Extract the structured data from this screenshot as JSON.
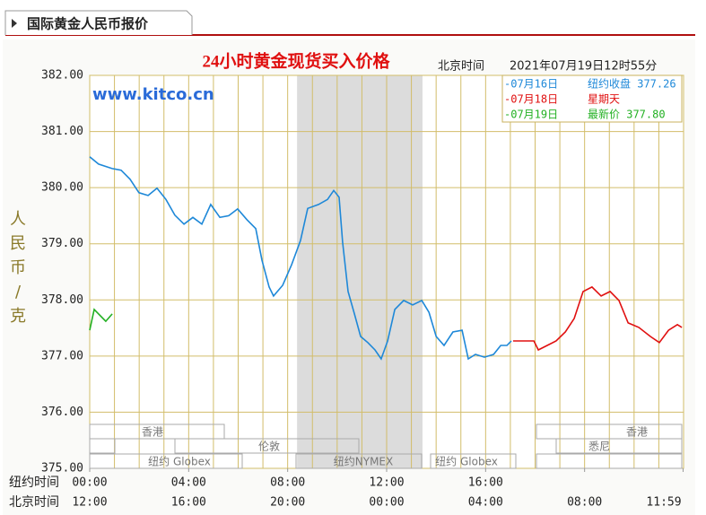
{
  "header": {
    "tab": "国际黄金人民币报价"
  },
  "chart_data": {
    "type": "line",
    "title": "24小时黄金现货买入价格",
    "time_label": "北京时间",
    "timestamp": "2021年07月19日12时55分",
    "watermark": "www.kitco.cn",
    "ylabel": "人民币/克",
    "x_row_labels": [
      "纽约时间",
      "北京时间"
    ],
    "xlim": [
      0,
      24
    ],
    "xticks": [
      {
        "value": 0,
        "label": "12:00"
      },
      {
        "value": 4,
        "label": "16:00"
      },
      {
        "value": 8,
        "label": "20:00"
      },
      {
        "value": 12,
        "label": "00:00"
      },
      {
        "value": 16,
        "label": "04:00"
      },
      {
        "value": 20,
        "label": "08:00"
      },
      {
        "value": 23.98,
        "label": "11:59"
      }
    ],
    "xticks_ny_labels": [
      "00:00",
      "04:00",
      "08:00",
      "12:00",
      "16:00"
    ],
    "ylim": [
      375,
      382
    ],
    "yticks": [
      {
        "value": 375,
        "label": "375.00"
      },
      {
        "value": 376,
        "label": "376.00"
      },
      {
        "value": 377,
        "label": "377.00"
      },
      {
        "value": 378,
        "label": "378.00"
      },
      {
        "value": 379,
        "label": "379.00"
      },
      {
        "value": 380,
        "label": "380.00"
      },
      {
        "value": 381,
        "label": "381.00"
      },
      {
        "value": 382,
        "label": "382.00"
      }
    ],
    "grid": true,
    "shaded_region": [
      8.38,
      13.45
    ],
    "markets": [
      "香港",
      "香港",
      "伦敦",
      "悉尼",
      "纽约 Globex",
      "纽约NYMEX",
      "纽约 Globex"
    ],
    "series": [
      {
        "name": "-07月16日",
        "note": "纽约收盘 377.26",
        "color": "#1e88d8",
        "x": [
          0,
          0.36,
          0.91,
          1.27,
          1.63,
          1.99,
          2.36,
          2.72,
          3.08,
          3.44,
          3.81,
          4.17,
          4.53,
          4.89,
          5.26,
          5.62,
          5.98,
          6.35,
          6.71,
          6.96,
          7.25,
          7.43,
          7.8,
          8.16,
          8.52,
          8.81,
          9.25,
          9.61,
          9.86,
          10.08,
          10.22,
          10.44,
          10.7,
          10.95,
          11.24,
          11.53,
          11.78,
          12.04,
          12.33,
          12.69,
          13.05,
          13.42,
          13.71,
          14.0,
          14.32,
          14.68,
          15.05,
          15.3,
          15.59,
          15.95,
          16.32,
          16.61,
          16.86,
          17.04
        ],
        "values": [
          380.55,
          380.42,
          380.34,
          380.31,
          380.15,
          379.91,
          379.86,
          379.99,
          379.79,
          379.51,
          379.35,
          379.47,
          379.35,
          379.7,
          379.47,
          379.5,
          379.62,
          379.43,
          379.27,
          378.71,
          378.23,
          378.07,
          378.26,
          378.63,
          379.06,
          379.63,
          379.7,
          379.79,
          379.95,
          379.83,
          379.03,
          378.15,
          377.75,
          377.35,
          377.24,
          377.11,
          376.95,
          377.27,
          377.83,
          377.99,
          377.91,
          377.99,
          377.78,
          377.35,
          377.19,
          377.43,
          377.46,
          376.95,
          377.03,
          376.98,
          377.03,
          377.19,
          377.19,
          377.27
        ]
      },
      {
        "name": "-07月18日",
        "note": "星期天",
        "color": "#e01010",
        "x": [
          17.11,
          17.95,
          18.13,
          18.49,
          18.85,
          19.22,
          19.58,
          19.94,
          20.3,
          20.67,
          21.03,
          21.39,
          21.76,
          22.19,
          22.66,
          23.02,
          23.39,
          23.75,
          23.93
        ],
        "values": [
          377.27,
          377.27,
          377.11,
          377.19,
          377.27,
          377.43,
          377.67,
          378.15,
          378.23,
          378.07,
          378.15,
          377.99,
          377.59,
          377.51,
          377.35,
          377.24,
          377.46,
          377.56,
          377.51
        ]
      },
      {
        "name": "-07月19日",
        "note": "最新价 377.80",
        "color": "#22b022",
        "x": [
          0,
          0.18,
          0.36,
          0.65,
          0.91
        ],
        "values": [
          377.46,
          377.83,
          377.75,
          377.62,
          377.75
        ]
      }
    ]
  }
}
